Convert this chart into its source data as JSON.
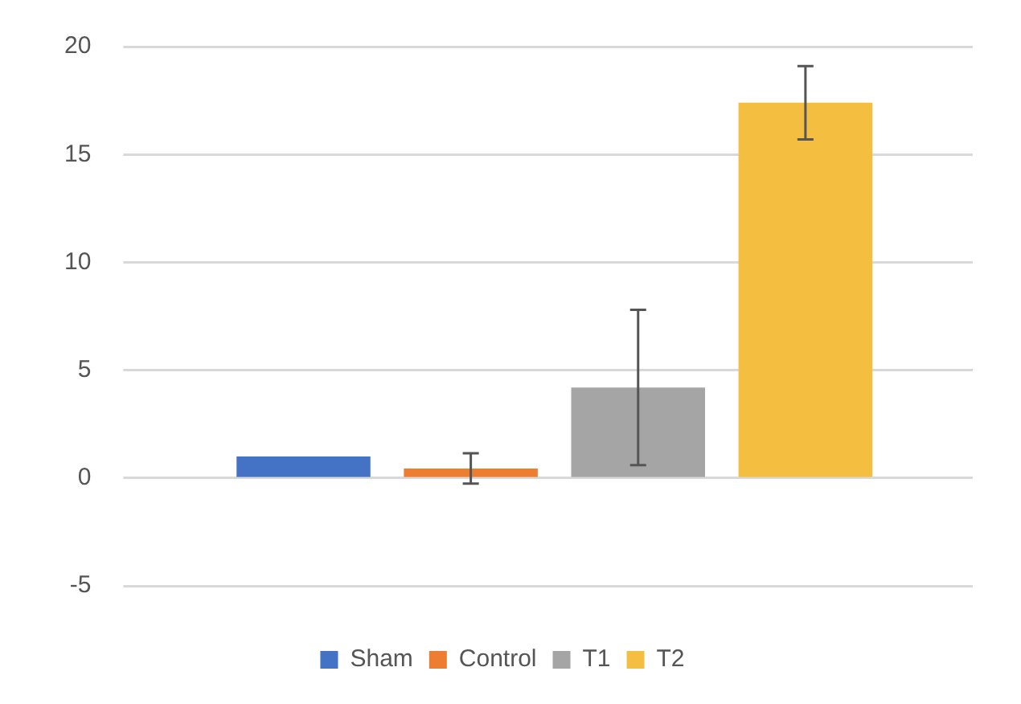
{
  "chart_data": {
    "type": "bar",
    "categories": [
      null
    ],
    "series": [
      {
        "name": "Sham",
        "color": "#4472c4",
        "values": [
          1.0
        ]
      },
      {
        "name": "Control",
        "color": "#ed7d31",
        "values": [
          0.45
        ],
        "errors": [
          0.7
        ]
      },
      {
        "name": "T1",
        "color": "#a5a5a5",
        "values": [
          4.2
        ],
        "errors": [
          3.6
        ]
      },
      {
        "name": "T2",
        "color": "#f4be41",
        "values": [
          17.4
        ],
        "errors": [
          1.7
        ]
      }
    ],
    "ylim": [
      -5,
      20
    ],
    "yticks": [
      -5,
      0,
      5,
      10,
      15,
      20
    ],
    "grid": "y",
    "legend": "bottom"
  }
}
